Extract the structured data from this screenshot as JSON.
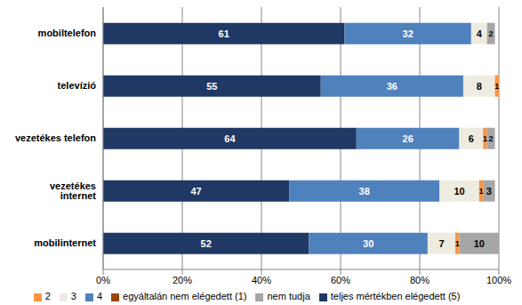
{
  "chart_data": {
    "type": "bar",
    "orientation": "horizontal",
    "stacked": true,
    "data_labels": true,
    "grid": true,
    "legend": "bottom",
    "categories": [
      "mobiltelefon",
      "televízió",
      "vezetékes telefon",
      "vezetékes internet",
      "mobilinternet"
    ],
    "series": [
      {
        "name": "teljes mértékben elégedett (5)",
        "color": "#1f3864",
        "values": [
          61,
          55,
          64,
          47,
          52
        ]
      },
      {
        "name": "4",
        "color": "#4f81bd",
        "values": [
          32,
          36,
          26,
          38,
          30
        ]
      },
      {
        "name": "3",
        "color": "#eeece1",
        "values": [
          4,
          8,
          6,
          10,
          7
        ]
      },
      {
        "name": "2",
        "color": "#f79646",
        "values": [
          null,
          1,
          1,
          1,
          1
        ]
      },
      {
        "name": "egyáltalán nem elégedett (1)",
        "color": "#984807",
        "values": [
          null,
          null,
          null,
          null,
          null
        ]
      },
      {
        "name": "nem tudja",
        "color": "#a6a6a6",
        "values": [
          2,
          null,
          2,
          3,
          10
        ]
      }
    ],
    "xlim": [
      0,
      100
    ],
    "xticks": [
      {
        "value": 0,
        "label": "0%"
      },
      {
        "value": 20,
        "label": "20%"
      },
      {
        "value": 40,
        "label": "40%"
      },
      {
        "value": 60,
        "label": "60%"
      },
      {
        "value": 80,
        "label": "80%"
      },
      {
        "value": 100,
        "label": "100%"
      }
    ]
  }
}
